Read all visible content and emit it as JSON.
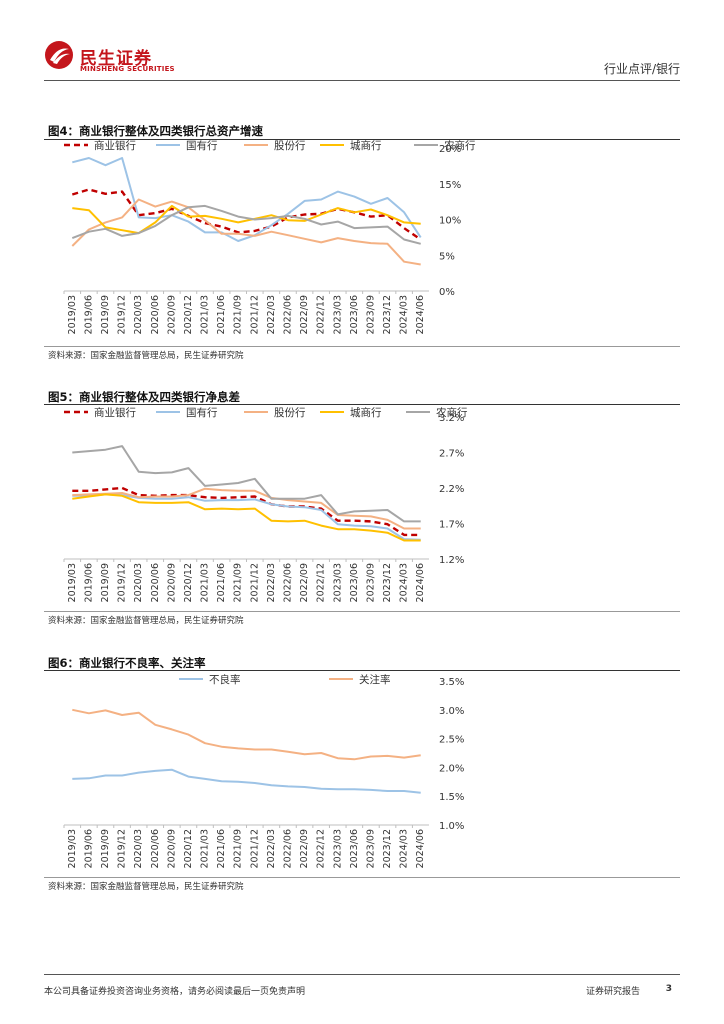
{
  "header": {
    "logo_cn": "民生证券",
    "logo_en": "MINSHENG SECURITIES",
    "report_type": "行业点评/银行",
    "brand_color": "#c4161c"
  },
  "footer": {
    "disclaimer": "本公司具备证券投资咨询业务资格，请务必阅读最后一页免责声明",
    "report_label": "证券研究报告",
    "page": "3"
  },
  "charts": [
    {
      "title": "图4：商业银行整体及四类银行总资产增速",
      "source": "资料来源：国家金融监督管理总局，民生证券研究院"
    },
    {
      "title": "图5：商业银行整体及四类银行净息差",
      "source": "资料来源：国家金融监督管理总局，民生证券研究院"
    },
    {
      "title": "图6：商业银行不良率、关注率",
      "source": "资料来源：国家金融监督管理总局，民生证券研究院"
    }
  ],
  "chart_data": [
    {
      "type": "line",
      "title": "图4：商业银行整体及四类银行总资产增速",
      "categories": [
        "2019/03",
        "2019/06",
        "2019/09",
        "2019/12",
        "2020/03",
        "2020/06",
        "2020/09",
        "2020/12",
        "2021/03",
        "2021/06",
        "2021/09",
        "2021/12",
        "2022/03",
        "2022/06",
        "2022/09",
        "2022/12",
        "2023/03",
        "2023/06",
        "2023/09",
        "2023/12",
        "2024/03",
        "2024/06"
      ],
      "ylim": [
        0,
        20
      ],
      "yticks": [
        0,
        5,
        10,
        15,
        20
      ],
      "yformat": "%0",
      "series": [
        {
          "name": "商业银行",
          "color": "#c00000",
          "dashed": true,
          "values": [
            13.5,
            14.2,
            13.6,
            13.9,
            10.6,
            10.9,
            11.5,
            10.5,
            9.5,
            9.0,
            8.2,
            8.4,
            9.0,
            10.3,
            10.7,
            10.8,
            11.5,
            11.0,
            10.4,
            10.6,
            8.8,
            7.2
          ]
        },
        {
          "name": "国有行",
          "color": "#9dc3e6",
          "dashed": false,
          "values": [
            18.0,
            18.6,
            17.6,
            18.6,
            10.3,
            10.2,
            10.6,
            9.7,
            8.2,
            8.2,
            7.0,
            7.8,
            9.2,
            10.8,
            12.6,
            12.8,
            13.9,
            13.2,
            12.2,
            13.0,
            11.0,
            7.5
          ]
        },
        {
          "name": "股份行",
          "color": "#f4b183",
          "dashed": false,
          "values": [
            6.3,
            8.6,
            9.6,
            10.3,
            12.8,
            11.8,
            12.5,
            11.7,
            9.9,
            8.0,
            8.0,
            7.7,
            8.3,
            7.8,
            7.3,
            6.8,
            7.4,
            7.0,
            6.7,
            6.6,
            4.1,
            3.7
          ]
        },
        {
          "name": "城商行",
          "color": "#ffc000",
          "dashed": false,
          "values": [
            11.6,
            11.3,
            8.9,
            8.5,
            8.1,
            9.6,
            11.9,
            10.4,
            10.5,
            10.1,
            9.6,
            10.1,
            10.6,
            9.9,
            9.8,
            10.7,
            11.6,
            11.0,
            11.4,
            10.6,
            9.6,
            9.4
          ]
        },
        {
          "name": "农商行",
          "color": "#a6a6a6",
          "dashed": false,
          "values": [
            7.4,
            8.3,
            8.7,
            7.7,
            8.1,
            9.1,
            10.6,
            11.7,
            11.9,
            11.2,
            10.4,
            10.0,
            10.2,
            10.5,
            10.1,
            9.3,
            9.7,
            8.8,
            8.9,
            9.0,
            7.2,
            6.6
          ]
        }
      ]
    },
    {
      "type": "line",
      "title": "图5：商业银行整体及四类银行净息差",
      "categories": [
        "2019/03",
        "2019/06",
        "2019/09",
        "2019/12",
        "2020/03",
        "2020/06",
        "2020/09",
        "2020/12",
        "2021/03",
        "2021/06",
        "2021/09",
        "2021/12",
        "2022/03",
        "2022/06",
        "2022/09",
        "2022/12",
        "2023/03",
        "2023/06",
        "2023/09",
        "2023/12",
        "2024/03",
        "2024/06"
      ],
      "ylim": [
        1.2,
        3.2
      ],
      "yticks": [
        1.2,
        1.7,
        2.2,
        2.7,
        3.2
      ],
      "yformat": "%1",
      "series": [
        {
          "name": "商业银行",
          "color": "#c00000",
          "dashed": true,
          "values": [
            2.16,
            2.16,
            2.18,
            2.2,
            2.1,
            2.09,
            2.1,
            2.1,
            2.07,
            2.06,
            2.07,
            2.08,
            1.97,
            1.94,
            1.94,
            1.91,
            1.74,
            1.74,
            1.73,
            1.69,
            1.54,
            1.54
          ]
        },
        {
          "name": "国有行",
          "color": "#9dc3e6",
          "dashed": false,
          "values": [
            2.09,
            2.09,
            2.11,
            2.1,
            2.06,
            2.05,
            2.05,
            2.07,
            2.02,
            2.03,
            2.03,
            2.04,
            1.97,
            1.94,
            1.93,
            1.89,
            1.69,
            1.67,
            1.66,
            1.63,
            1.48,
            1.47
          ]
        },
        {
          "name": "股份行",
          "color": "#f4b183",
          "dashed": false,
          "values": [
            2.1,
            2.11,
            2.12,
            2.13,
            2.07,
            2.08,
            2.08,
            2.1,
            2.19,
            2.17,
            2.16,
            2.16,
            2.06,
            2.03,
            2.01,
            1.99,
            1.82,
            1.81,
            1.8,
            1.75,
            1.63,
            1.63
          ]
        },
        {
          "name": "城商行",
          "color": "#ffc000",
          "dashed": false,
          "values": [
            2.05,
            2.08,
            2.11,
            2.09,
            2.0,
            1.99,
            1.99,
            2.0,
            1.9,
            1.91,
            1.9,
            1.91,
            1.74,
            1.73,
            1.74,
            1.67,
            1.62,
            1.62,
            1.6,
            1.57,
            1.46,
            1.46
          ]
        },
        {
          "name": "农商行",
          "color": "#a6a6a6",
          "dashed": false,
          "values": [
            2.7,
            2.72,
            2.74,
            2.79,
            2.43,
            2.41,
            2.42,
            2.48,
            2.23,
            2.25,
            2.27,
            2.33,
            2.05,
            2.05,
            2.05,
            2.1,
            1.83,
            1.87,
            1.88,
            1.89,
            1.73,
            1.73
          ]
        }
      ]
    },
    {
      "type": "line",
      "title": "图6：商业银行不良率、关注率",
      "categories": [
        "2019/03",
        "2019/06",
        "2019/09",
        "2019/12",
        "2020/03",
        "2020/06",
        "2020/09",
        "2020/12",
        "2021/03",
        "2021/06",
        "2021/09",
        "2021/12",
        "2022/03",
        "2022/06",
        "2022/09",
        "2022/12",
        "2023/03",
        "2023/06",
        "2023/09",
        "2023/12",
        "2024/03",
        "2024/06"
      ],
      "ylim": [
        1.0,
        3.5
      ],
      "yticks": [
        1.0,
        1.5,
        2.0,
        2.5,
        3.0,
        3.5
      ],
      "yformat": "%1",
      "series": [
        {
          "name": "不良率",
          "color": "#9dc3e6",
          "dashed": false,
          "values": [
            1.8,
            1.81,
            1.86,
            1.86,
            1.91,
            1.94,
            1.96,
            1.84,
            1.8,
            1.76,
            1.75,
            1.73,
            1.69,
            1.67,
            1.66,
            1.63,
            1.62,
            1.62,
            1.61,
            1.59,
            1.59,
            1.56
          ]
        },
        {
          "name": "关注率",
          "color": "#f4b183",
          "dashed": false,
          "values": [
            3.0,
            2.94,
            2.99,
            2.91,
            2.95,
            2.74,
            2.66,
            2.57,
            2.42,
            2.36,
            2.33,
            2.31,
            2.31,
            2.27,
            2.23,
            2.25,
            2.16,
            2.14,
            2.19,
            2.2,
            2.17,
            2.21
          ]
        }
      ]
    }
  ]
}
